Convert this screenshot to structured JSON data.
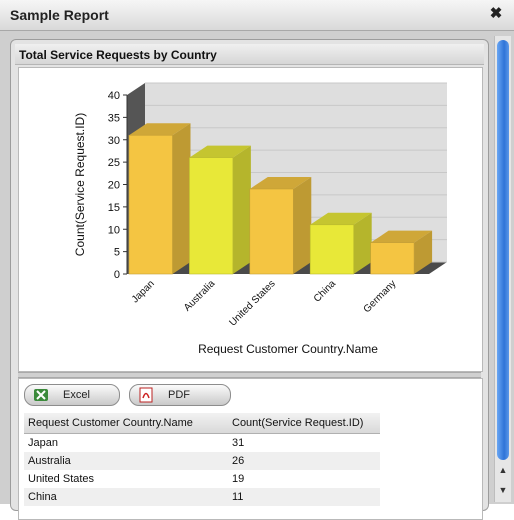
{
  "dialog": {
    "title": "Sample Report",
    "close_glyph": "✖"
  },
  "panel": {
    "title": "Total Service Requests by Country"
  },
  "chart_data": {
    "type": "bar",
    "categories": [
      "Japan",
      "Australia",
      "United States",
      "China",
      "Germany"
    ],
    "values": [
      31,
      26,
      19,
      11,
      7
    ],
    "title": "",
    "xlabel": "Request Customer Country.Name",
    "ylabel": "Count(Service Request.ID)",
    "ylim": [
      0,
      40
    ],
    "yticks": [
      0,
      5,
      10,
      15,
      20,
      25,
      30,
      35,
      40
    ],
    "colors": [
      "#f4c542",
      "#e8e838",
      "#f4c542",
      "#e8e838",
      "#f4c542"
    ],
    "style": "3d",
    "grid": true
  },
  "export": {
    "excel_label": "Excel",
    "pdf_label": "PDF"
  },
  "table": {
    "headers": [
      "Request Customer Country.Name",
      "Count(Service Request.ID)"
    ],
    "rows": [
      [
        "Japan",
        "31"
      ],
      [
        "Australia",
        "26"
      ],
      [
        "United States",
        "19"
      ],
      [
        "China",
        "11"
      ]
    ]
  },
  "icons": {
    "excel": "excel-icon",
    "pdf": "pdf-icon"
  }
}
